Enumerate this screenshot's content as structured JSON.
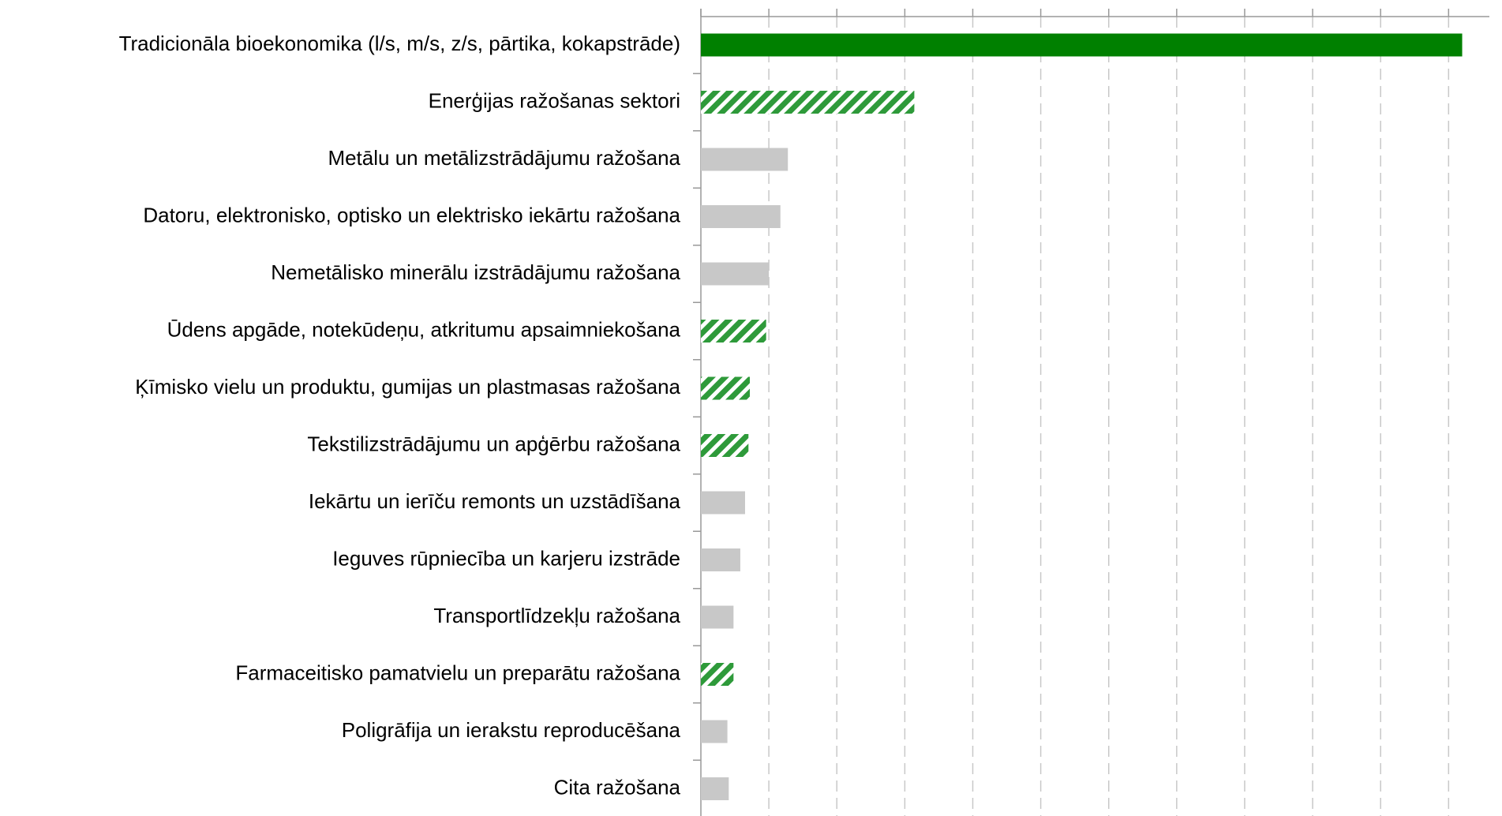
{
  "chart_data": {
    "type": "hbar",
    "categories": [
      "Tradicionāla bioekonomika (l/s, m/s, z/s, pārtika, kokapstrāde)",
      "Enerģijas ražošanas sektori",
      "Metālu un metālizstrādājumu ražošana",
      "Datoru, elektronisko, optisko un elektrisko iekārtu ražošana",
      "Nemetālisko minerālu izstrādājumu ražošana",
      "Ūdens apgāde, notekūdeņu, atkritumu apsaimniekošana",
      "Ķīmisko vielu un produktu, gumijas un plastmasas ražošana",
      "Tekstilizstrādājumu un apģērbu ražošana",
      "Iekārtu un ierīču remonts un uzstādīšana",
      "Ieguves rūpniecība un karjeru izstrāde",
      "Transportlīdzekļu ražošana",
      "Farmaceitisko pamatvielu un preparātu ražošana",
      "Poligrāfija un ierakstu reproducēšana",
      "Cita ražošana"
    ],
    "values": [
      11.2,
      3.14,
      1.28,
      1.17,
      1.0,
      0.96,
      0.72,
      0.7,
      0.65,
      0.58,
      0.48,
      0.48,
      0.39,
      0.41
    ],
    "colors": [
      "#008000",
      "#2e9a3a",
      "#c8c8c8",
      "#c8c8c8",
      "#c8c8c8",
      "#2e9a3a",
      "#2e9a3a",
      "#2e9a3a",
      "#c8c8c8",
      "#c8c8c8",
      "#c8c8c8",
      "#2e9a3a",
      "#c8c8c8",
      "#c8c8c8"
    ],
    "hatched": [
      false,
      true,
      false,
      false,
      false,
      true,
      true,
      true,
      false,
      false,
      false,
      true,
      false,
      false
    ],
    "xlim": [
      0,
      11.6
    ],
    "xticks": [
      0,
      1,
      2,
      3,
      4,
      5,
      6,
      7,
      8,
      9,
      10,
      11
    ],
    "grid": true
  }
}
